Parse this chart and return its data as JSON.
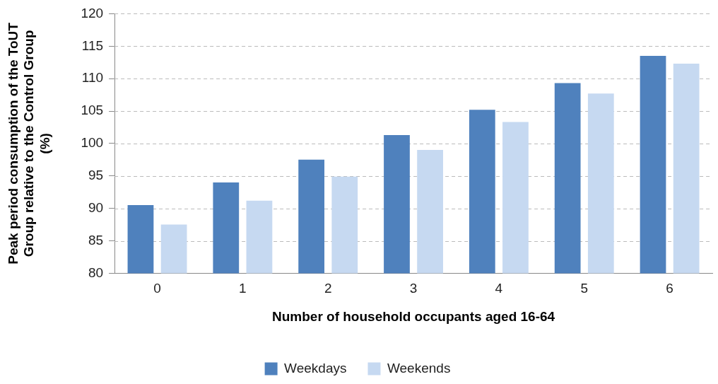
{
  "chart_data": {
    "type": "bar",
    "xlabel": "Number of household occupants aged 16-64",
    "ylabel": "Peak period consumption of the ToUT\nGroup relative to the Control Group\n(%)",
    "categories": [
      "0",
      "1",
      "2",
      "3",
      "4",
      "5",
      "6"
    ],
    "series": [
      {
        "name": "Weekdays",
        "color": "#4f81bd",
        "values": [
          90.5,
          94.0,
          97.5,
          101.3,
          105.2,
          109.3,
          113.5
        ]
      },
      {
        "name": "Weekends",
        "color": "#c6d9f1",
        "values": [
          87.5,
          91.2,
          94.9,
          99.0,
          103.3,
          107.7,
          112.3
        ]
      }
    ],
    "ylim": [
      80,
      120
    ],
    "yticks": [
      80,
      85,
      90,
      95,
      100,
      105,
      110,
      115,
      120
    ],
    "grid": "y",
    "legend": "bottom"
  }
}
